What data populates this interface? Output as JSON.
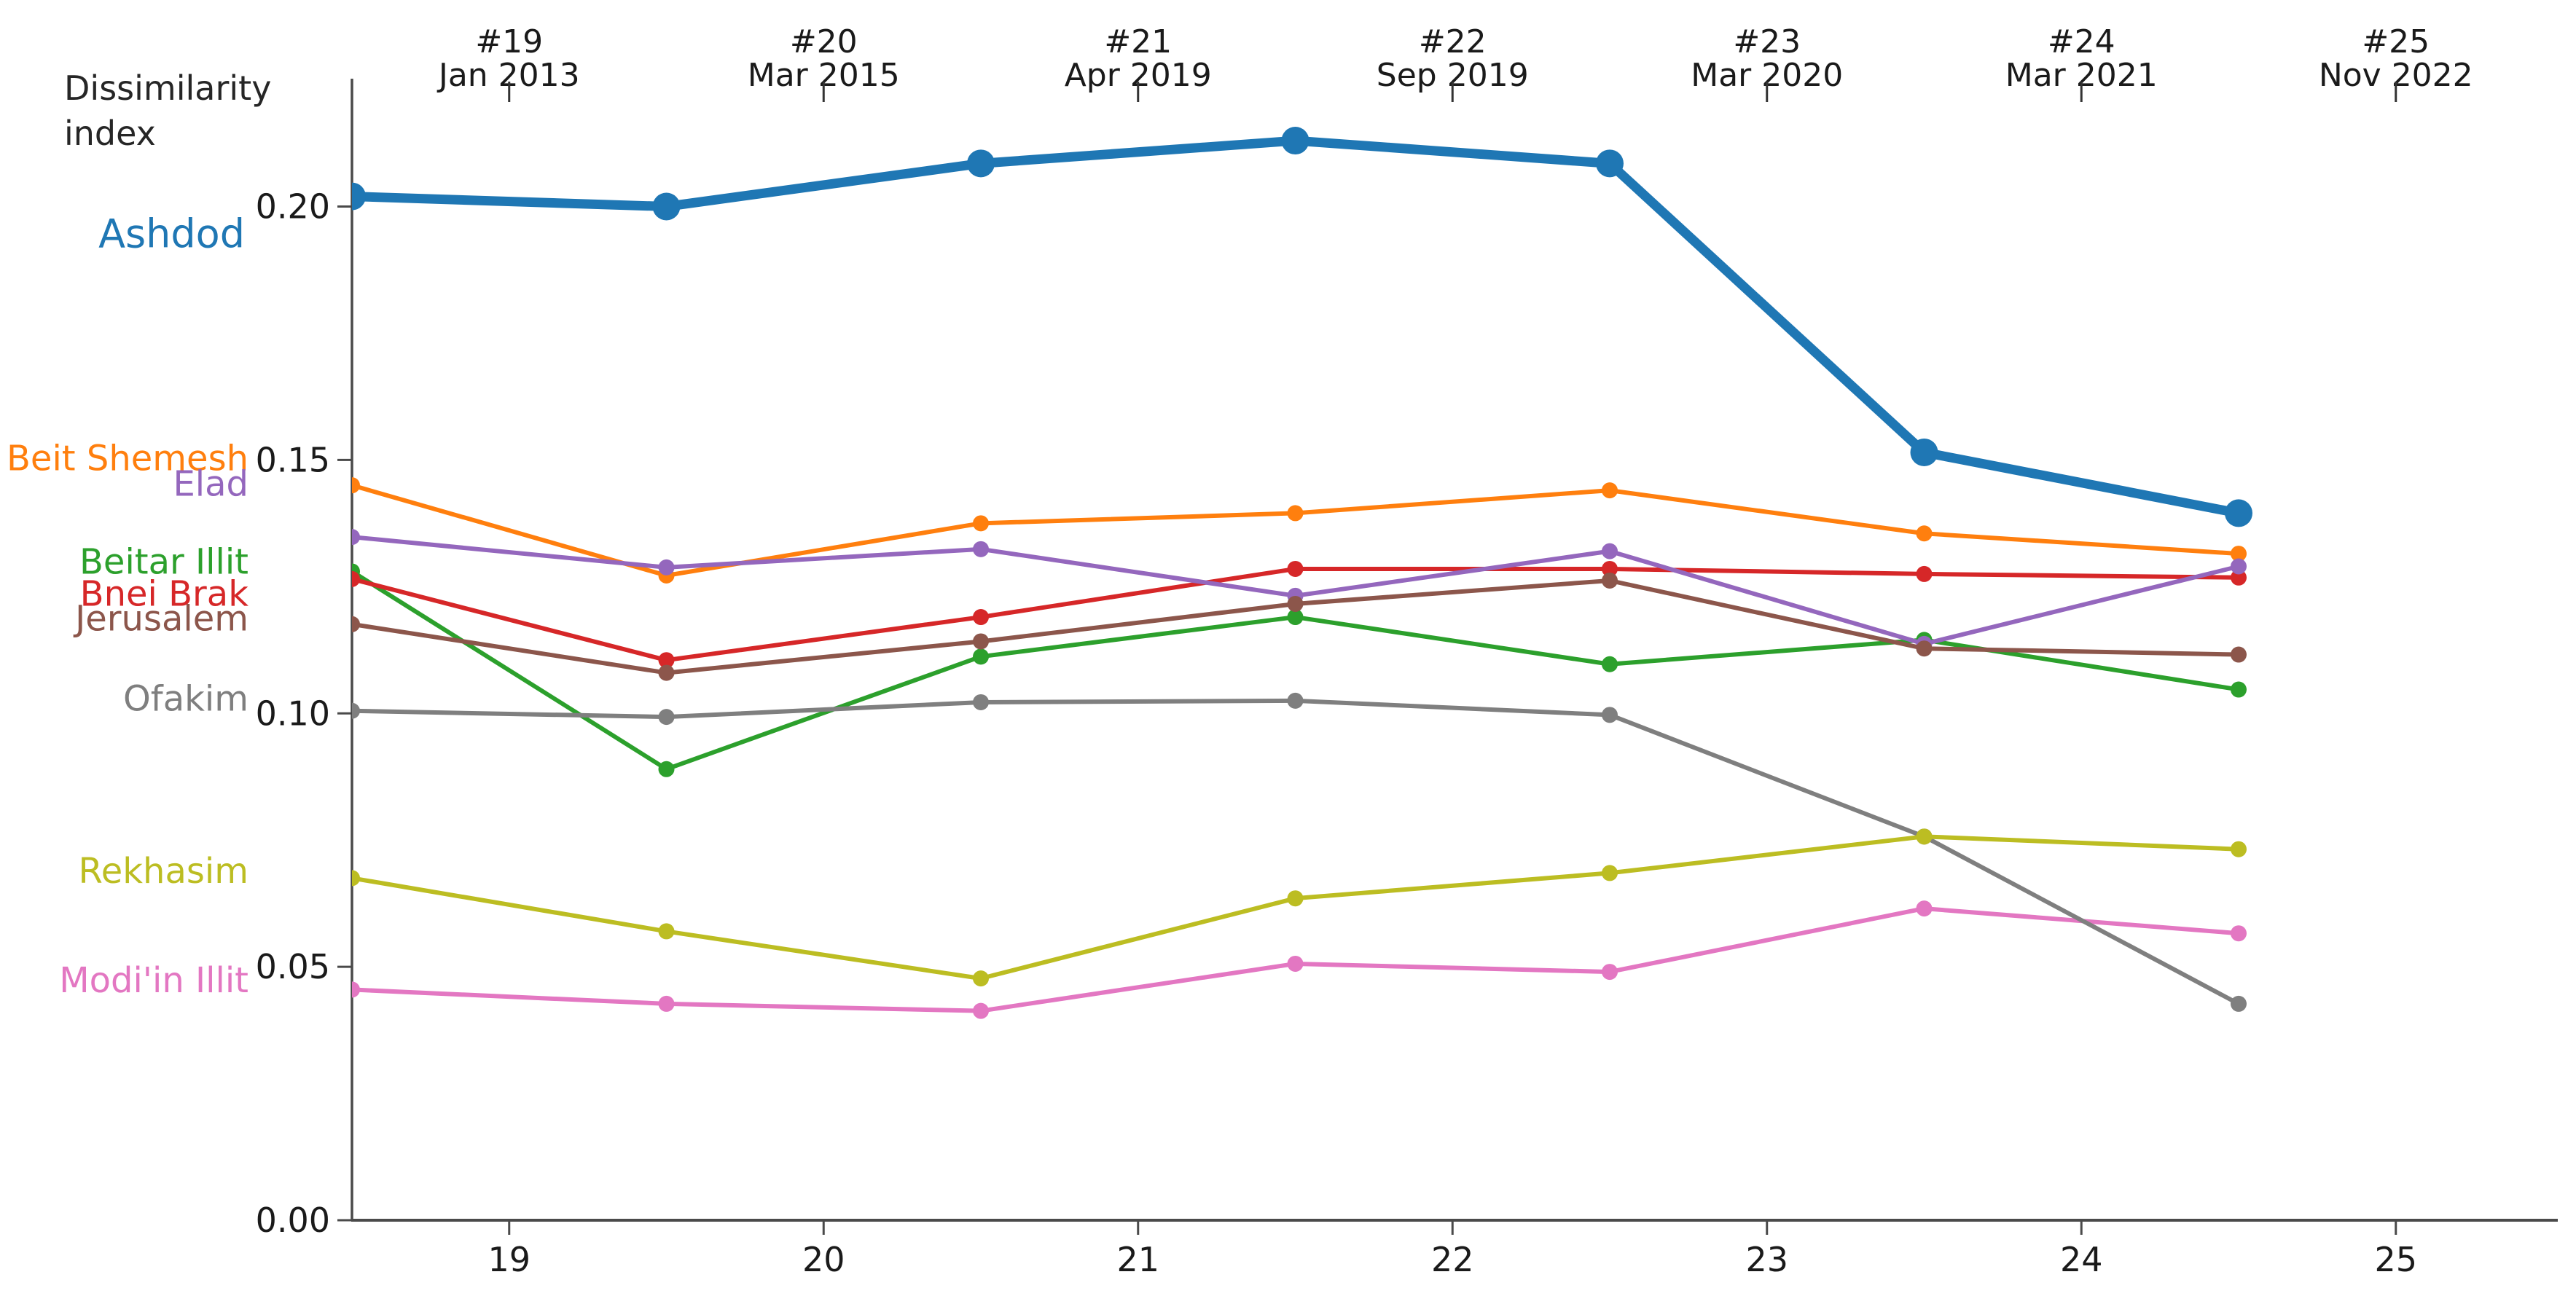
{
  "chart_data": {
    "type": "line",
    "title": "Dissimilarity\nindex",
    "ylabel": "Dissimilarity index",
    "xlim": [
      18.5,
      25.55
    ],
    "ylim": [
      0.0,
      0.2235
    ],
    "grid": false,
    "legend_position": "left-margin-colored-labels",
    "x": [
      18.5,
      19.5,
      20.5,
      21.5,
      22.5,
      23.5,
      24.5
    ],
    "x_ticks": [
      {
        "position": 19,
        "label": "19"
      },
      {
        "position": 20,
        "label": "20"
      },
      {
        "position": 21,
        "label": "21"
      },
      {
        "position": 22,
        "label": "22"
      },
      {
        "position": 23,
        "label": "23"
      },
      {
        "position": 24,
        "label": "24"
      },
      {
        "position": 25,
        "label": "25"
      }
    ],
    "top_axis": [
      {
        "position": 19,
        "election": "#19",
        "date": "Jan 2013"
      },
      {
        "position": 20,
        "election": "#20",
        "date": "Mar 2015"
      },
      {
        "position": 21,
        "election": "#21",
        "date": "Apr 2019"
      },
      {
        "position": 22,
        "election": "#22",
        "date": "Sep 2019"
      },
      {
        "position": 23,
        "election": "#23",
        "date": "Mar 2020"
      },
      {
        "position": 24,
        "election": "#24",
        "date": "Mar 2021"
      },
      {
        "position": 25,
        "election": "#25",
        "date": "Nov 2022"
      }
    ],
    "y_ticks": [
      {
        "value": 0.0,
        "label": "0.00"
      },
      {
        "value": 0.05,
        "label": "0.05"
      },
      {
        "value": 0.1,
        "label": "0.10"
      },
      {
        "value": 0.15,
        "label": "0.15"
      },
      {
        "value": 0.2,
        "label": "0.20"
      }
    ],
    "series": [
      {
        "name": "Ashdod",
        "color": "#1f77b4",
        "emphasis": true,
        "label_v": 0.1944,
        "values": [
          0.202,
          0.2,
          0.2085,
          0.213,
          0.2085,
          0.1515,
          0.1395
        ]
      },
      {
        "name": "Beit Shemesh",
        "color": "#ff7f0e",
        "emphasis": false,
        "label_v": 0.1504,
        "values": [
          0.145,
          0.1272,
          0.1375,
          0.1395,
          0.144,
          0.1355,
          0.1315
        ]
      },
      {
        "name": "Beitar Illit",
        "color": "#2ca02c",
        "emphasis": false,
        "label_v": 0.13,
        "values": [
          0.128,
          0.089,
          0.1112,
          0.119,
          0.1097,
          0.1145,
          0.1047
        ]
      },
      {
        "name": "Bnei Brak",
        "color": "#d62728",
        "emphasis": false,
        "label_v": 0.1237,
        "values": [
          0.1265,
          0.1105,
          0.119,
          0.1285,
          0.1285,
          0.1275,
          0.1268
        ]
      },
      {
        "name": "Elad",
        "color": "#9467bd",
        "emphasis": false,
        "label_v": 0.1454,
        "values": [
          0.1348,
          0.1288,
          0.1324,
          0.1232,
          0.132,
          0.1137,
          0.129
        ]
      },
      {
        "name": "Jerusalem",
        "color": "#8c564b",
        "emphasis": false,
        "label_v": 0.1188,
        "values": [
          0.1176,
          0.108,
          0.1142,
          0.1216,
          0.1262,
          0.1128,
          0.1116
        ]
      },
      {
        "name": "Modi'in Illit",
        "color": "#e377c2",
        "emphasis": false,
        "label_v": 0.0474,
        "values": [
          0.0455,
          0.0427,
          0.0413,
          0.0506,
          0.049,
          0.0615,
          0.0566
        ]
      },
      {
        "name": "Ofakim",
        "color": "#7f7f7f",
        "emphasis": false,
        "label_v": 0.103,
        "values": [
          0.1005,
          0.0993,
          0.1022,
          0.1025,
          0.0997,
          0.0757,
          0.0427
        ]
      },
      {
        "name": "Rekhasim",
        "color": "#bcbd22",
        "emphasis": false,
        "label_v": 0.069,
        "values": [
          0.0675,
          0.057,
          0.0477,
          0.0635,
          0.0685,
          0.0757,
          0.0732
        ]
      }
    ]
  }
}
